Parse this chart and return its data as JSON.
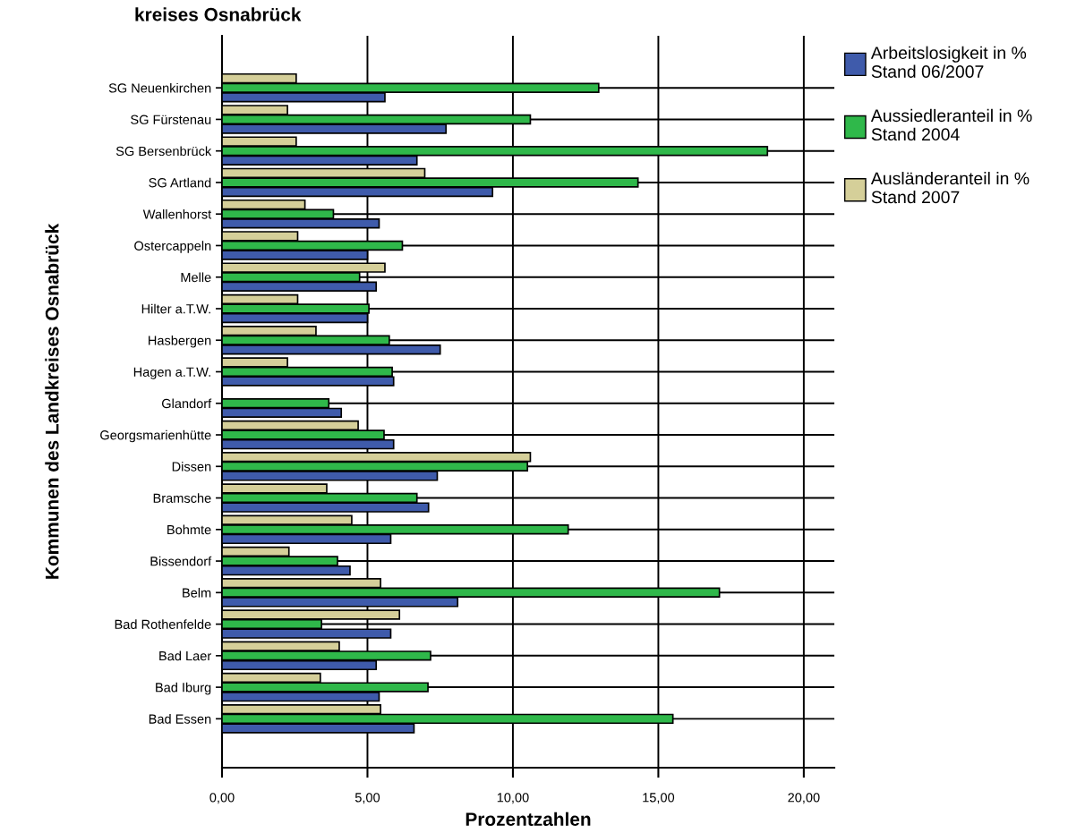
{
  "chart_data": {
    "type": "bar",
    "orientation": "horizontal",
    "title": "kreises Osnabrück",
    "xlabel": "Prozentzahlen",
    "ylabel": "Kommunen des Landkreises Osnabrück",
    "categories": [
      "SG Neuenkirchen",
      "SG Fürstenau",
      "SG Bersenbrück",
      "SG Artland",
      "Wallenhorst",
      "Ostercappeln",
      "Melle",
      "Hilter a.T.W.",
      "Hasbergen",
      "Hagen a.T.W.",
      "Glandorf",
      "Georgsmarienhütte",
      "Dissen",
      "Bramsche",
      "Bohmte",
      "Bissendorf",
      "Belm",
      "Bad Rothenfelde",
      "Bad Laer",
      "Bad Iburg",
      "Bad Essen"
    ],
    "series": [
      {
        "name": "Arbeitslosigkeit in %\nStand 06/2007",
        "color": "#3f5bab",
        "values": [
          5.6,
          7.7,
          6.7,
          9.3,
          5.4,
          5.0,
          5.3,
          5.0,
          7.5,
          5.9,
          4.1,
          5.9,
          7.4,
          7.1,
          5.8,
          4.4,
          8.1,
          5.8,
          5.3,
          5.4,
          6.6
        ]
      },
      {
        "name": "Aussiedleranteil in %\nStand 2004",
        "color": "#2fb84a",
        "values": [
          12.95,
          10.6,
          18.75,
          14.3,
          3.83,
          6.2,
          4.73,
          5.05,
          5.75,
          5.85,
          3.67,
          5.57,
          10.5,
          6.7,
          11.9,
          3.97,
          17.1,
          3.42,
          7.17,
          7.08,
          15.5
        ]
      },
      {
        "name": "Ausländeranteil in %\nStand 2007",
        "color": "#d5cf99",
        "values": [
          2.55,
          2.25,
          2.55,
          6.97,
          2.85,
          2.6,
          5.6,
          2.6,
          3.23,
          2.25,
          null,
          4.68,
          10.6,
          3.6,
          4.46,
          2.3,
          5.45,
          6.1,
          4.03,
          3.38,
          5.45
        ]
      }
    ],
    "xlim": [
      0,
      21.05
    ],
    "xticks": [
      {
        "value": 0,
        "label": "0,00"
      },
      {
        "value": 5,
        "label": "5,00"
      },
      {
        "value": 10,
        "label": "10,00"
      },
      {
        "value": 15,
        "label": "15,00"
      },
      {
        "value": 20,
        "label": "20,00"
      }
    ],
    "grid": true,
    "legend": "top right"
  }
}
